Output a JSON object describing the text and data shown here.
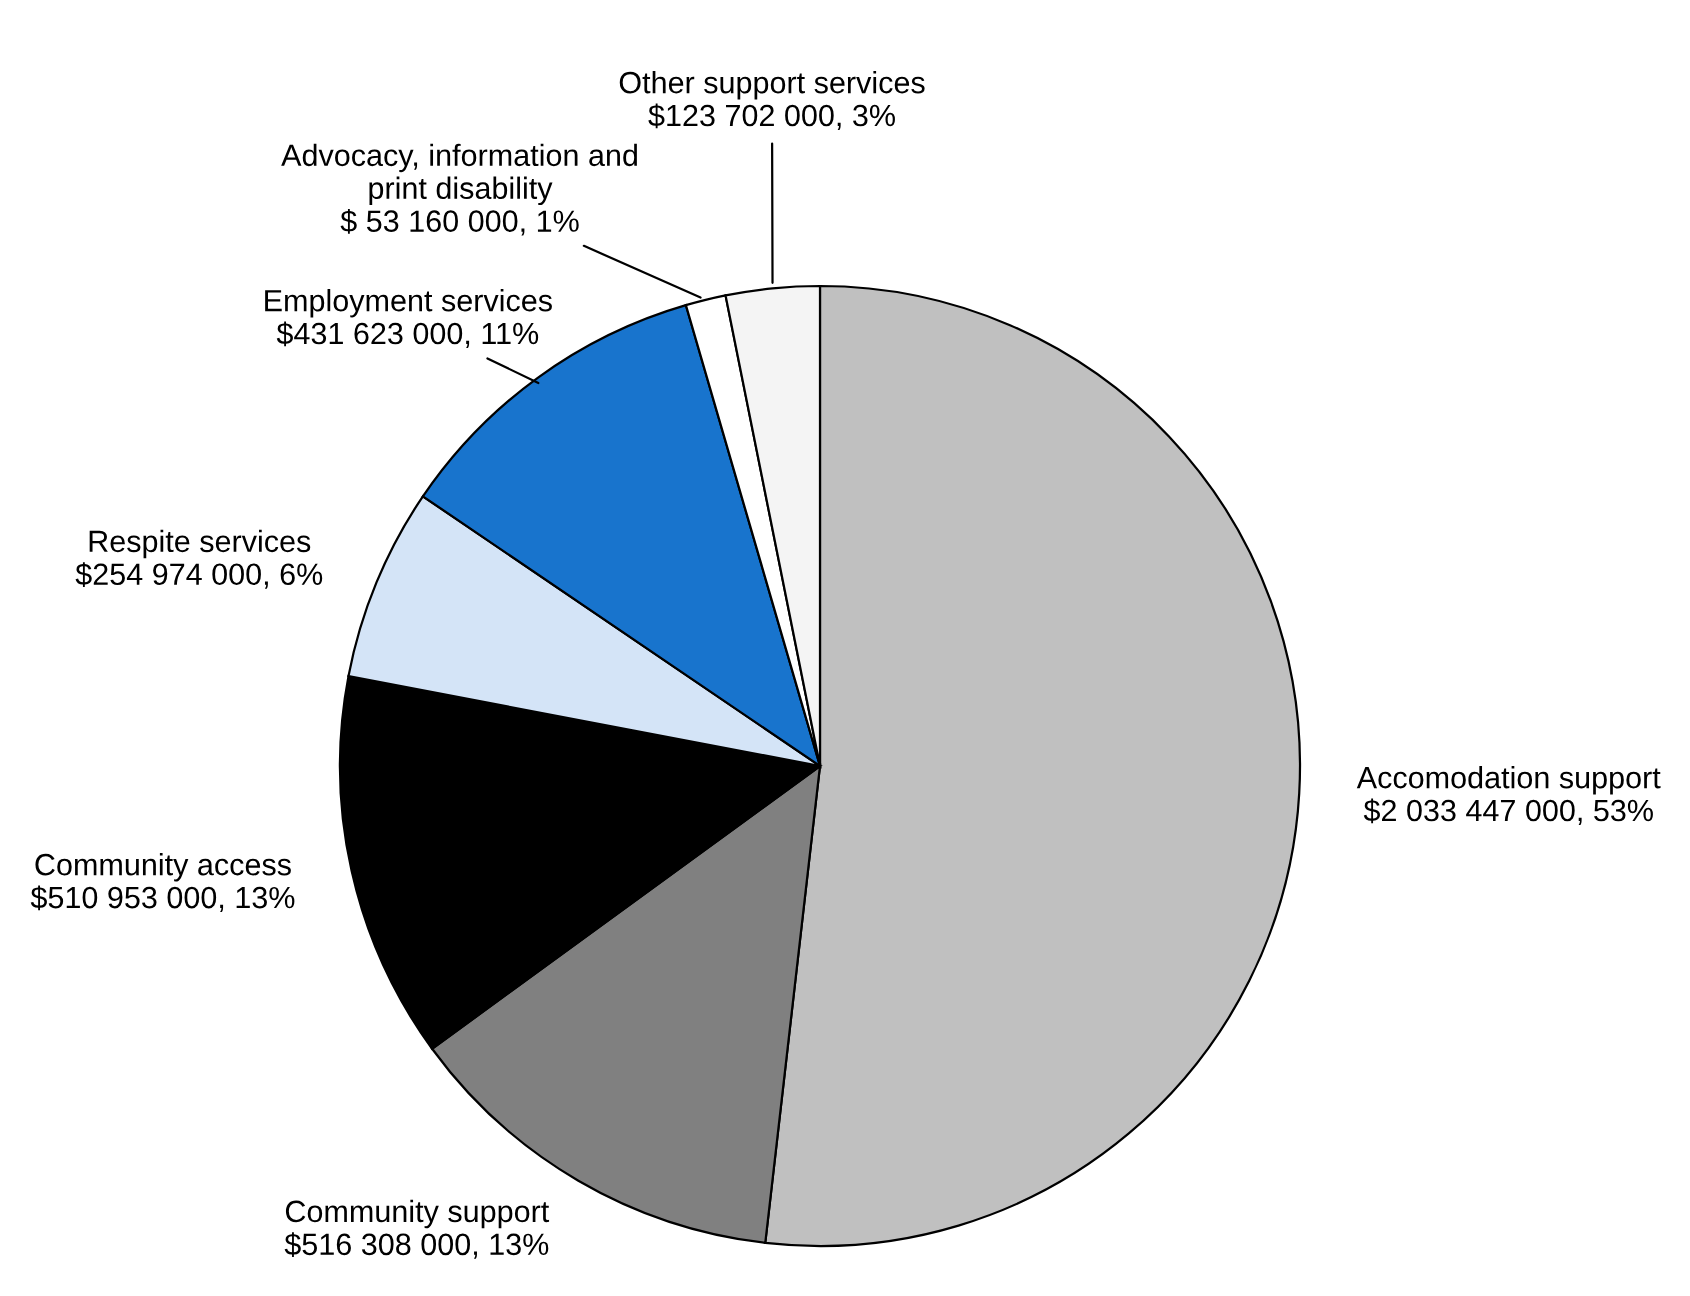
{
  "chart_data": {
    "type": "pie",
    "categories": [
      "Accomodation support",
      "Community support",
      "Community access",
      "Respite services",
      "Employment services",
      "Advocacy, information and\nprint disability",
      "Other support services"
    ],
    "values": [
      2033447000,
      516308000,
      510953000,
      254974000,
      431623000,
      53160000,
      123702000
    ],
    "value_labels": [
      "$2 033 447 000, 53%",
      "$516 308 000, 13%",
      "$510 953 000, 13%",
      "$254 974 000, 6%",
      "$431 623 000, 11%",
      "$ 53 160 000, 1%",
      "$123 702 000, 3%"
    ],
    "colors": [
      "#c0c0c0",
      "#808080",
      "#000000",
      "#d4e4f7",
      "#1874cd",
      "#ffffff",
      "#f4f4f4"
    ],
    "legend": false
  }
}
